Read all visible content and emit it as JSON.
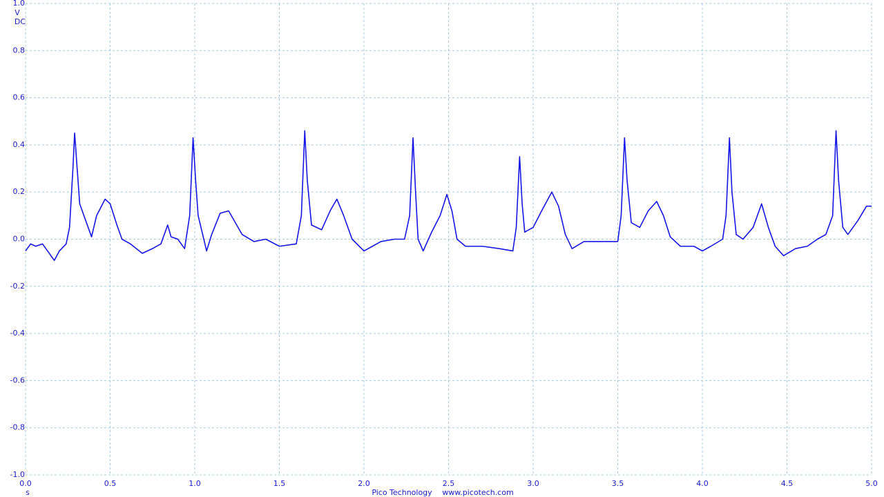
{
  "chart_data": {
    "type": "line",
    "y_unit": "V",
    "coupling": "DC",
    "x_unit": "s",
    "footer": [
      "Pico Technology",
      "www.picotech.com"
    ],
    "xlim": [
      0,
      5
    ],
    "ylim": [
      -1,
      1
    ],
    "xticks": [
      {
        "value": 0,
        "label": "0.0"
      },
      0.5,
      {
        "value": 1,
        "label": "1.0"
      },
      1.5,
      {
        "value": 2,
        "label": "2.0"
      },
      2.5,
      {
        "value": 3,
        "label": "3.0"
      },
      3.5,
      {
        "value": 4,
        "label": "4.0"
      },
      4.5,
      {
        "value": 5,
        "label": "5.0"
      }
    ],
    "yticks": [
      {
        "value": 1,
        "label": "1.0"
      },
      0.8,
      0.6,
      0.4,
      0.2,
      {
        "value": 0,
        "label": "0.0"
      },
      -0.2,
      -0.4,
      -0.6,
      -0.8,
      {
        "value": -1,
        "label": "-1.0"
      }
    ],
    "grid": true,
    "x": [
      0.0,
      0.03,
      0.06,
      0.1,
      0.13,
      0.17,
      0.2,
      0.24,
      0.26,
      0.28,
      0.29,
      0.305,
      0.32,
      0.37,
      0.39,
      0.42,
      0.47,
      0.5,
      0.54,
      0.57,
      0.62,
      0.69,
      0.75,
      0.8,
      0.84,
      0.86,
      0.9,
      0.94,
      0.97,
      0.99,
      1.005,
      1.02,
      1.07,
      1.1,
      1.15,
      1.2,
      1.24,
      1.28,
      1.35,
      1.42,
      1.5,
      1.6,
      1.63,
      1.65,
      1.665,
      1.69,
      1.75,
      1.8,
      1.84,
      1.88,
      1.93,
      2.0,
      2.05,
      2.1,
      2.18,
      2.24,
      2.27,
      2.29,
      2.305,
      2.32,
      2.35,
      2.4,
      2.45,
      2.49,
      2.52,
      2.55,
      2.6,
      2.7,
      2.8,
      2.88,
      2.9,
      2.92,
      2.935,
      2.95,
      3.0,
      3.05,
      3.11,
      3.15,
      3.19,
      3.23,
      3.3,
      3.4,
      3.5,
      3.52,
      3.54,
      3.555,
      3.58,
      3.63,
      3.68,
      3.73,
      3.77,
      3.81,
      3.87,
      3.95,
      4.0,
      4.05,
      4.12,
      4.14,
      4.16,
      4.175,
      4.2,
      4.24,
      4.3,
      4.35,
      4.39,
      4.43,
      4.48,
      4.55,
      4.62,
      4.68,
      4.73,
      4.77,
      4.79,
      4.805,
      4.83,
      4.86,
      4.92,
      4.97,
      5.0
    ],
    "series": [
      {
        "color": "#1414e6",
        "values": [
          -0.05,
          -0.02,
          -0.03,
          -0.02,
          -0.05,
          -0.09,
          -0.05,
          -0.02,
          0.05,
          0.3,
          0.45,
          0.3,
          0.15,
          0.05,
          0.01,
          0.1,
          0.17,
          0.15,
          0.06,
          0.0,
          -0.02,
          -0.06,
          -0.04,
          -0.02,
          0.06,
          0.01,
          0.0,
          -0.04,
          0.1,
          0.43,
          0.25,
          0.1,
          -0.05,
          0.02,
          0.11,
          0.12,
          0.07,
          0.02,
          -0.01,
          0.0,
          -0.03,
          -0.02,
          0.1,
          0.46,
          0.25,
          0.06,
          0.04,
          0.12,
          0.17,
          0.1,
          0.0,
          -0.05,
          -0.03,
          -0.01,
          0.0,
          0.0,
          0.1,
          0.43,
          0.2,
          0.0,
          -0.05,
          0.03,
          0.1,
          0.19,
          0.12,
          0.0,
          -0.03,
          -0.03,
          -0.04,
          -0.05,
          0.05,
          0.35,
          0.15,
          0.03,
          0.05,
          0.12,
          0.2,
          0.14,
          0.02,
          -0.04,
          -0.01,
          -0.01,
          -0.01,
          0.1,
          0.43,
          0.25,
          0.07,
          0.05,
          0.12,
          0.16,
          0.1,
          0.01,
          -0.03,
          -0.03,
          -0.05,
          -0.03,
          0.0,
          0.1,
          0.43,
          0.2,
          0.02,
          0.0,
          0.05,
          0.15,
          0.05,
          -0.03,
          -0.07,
          -0.04,
          -0.03,
          0.0,
          0.02,
          0.1,
          0.46,
          0.25,
          0.05,
          0.02,
          0.08,
          0.14,
          0.14
        ]
      }
    ]
  }
}
